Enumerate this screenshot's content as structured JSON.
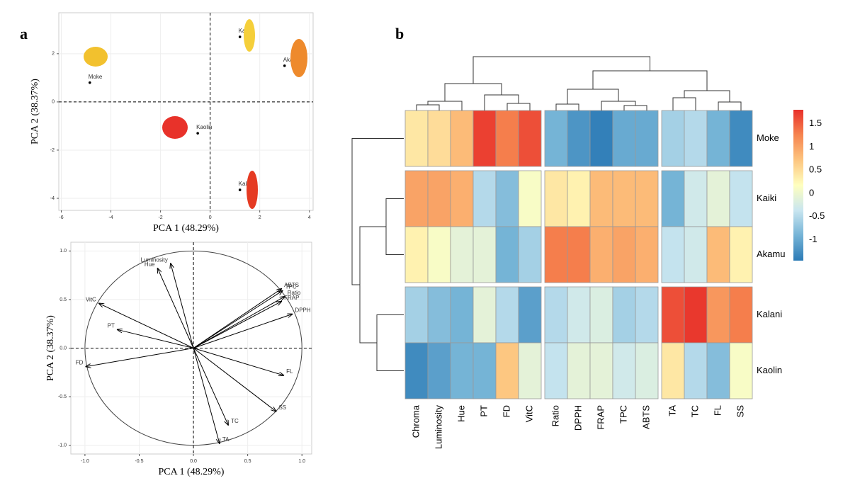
{
  "panel_labels": [
    "a",
    "b"
  ],
  "chart_data": [
    {
      "type": "scatter",
      "x_label": "PCA 1 (48.29%)",
      "y_label": "PCA 2 (38.37%)",
      "labels": [
        "Moke",
        "Kaiki",
        "Akamu",
        "Kaolin",
        "Kalani"
      ],
      "x": [
        -4.85,
        1.2,
        3.0,
        -0.5,
        1.2
      ],
      "y": [
        0.8,
        2.7,
        1.5,
        -1.3,
        -3.65
      ],
      "xlim": [
        -6.1,
        4.15
      ],
      "ylim": [
        -4.5,
        3.7
      ],
      "xticks": [
        -6,
        -4,
        -2,
        0,
        2,
        4
      ],
      "yticks": [
        -4,
        -2,
        0,
        2
      ],
      "grid": true,
      "color": "#000000"
    },
    {
      "type": "biplot",
      "x_label": "PCA 1 (48.29%)",
      "y_label": "PCA 2 (38.37%)",
      "labels": [
        "Luminosity",
        "Hue",
        "VitC",
        "PT",
        "FD",
        "ABTS",
        "TPC",
        "Ratio",
        "FRAP",
        "DPPH",
        "FL",
        "SS",
        "TC",
        "TA"
      ],
      "x": [
        -0.21,
        -0.33,
        -0.87,
        -0.7,
        -0.99,
        0.81,
        0.82,
        0.84,
        0.81,
        0.91,
        0.83,
        0.76,
        0.32,
        0.24
      ],
      "y": [
        0.87,
        0.82,
        0.46,
        0.19,
        -0.19,
        0.61,
        0.59,
        0.53,
        0.48,
        0.35,
        -0.28,
        -0.65,
        -0.79,
        -0.98
      ],
      "xlim": [
        -1.13,
        1.09
      ],
      "ylim": [
        -1.09,
        1.09
      ],
      "xticks": [
        {
          "value": -1,
          "label": "-1.0"
        },
        -0.5,
        {
          "value": 0,
          "label": "0.0"
        },
        0.5,
        {
          "value": 1,
          "label": "1.0"
        }
      ],
      "yticks": [
        {
          "value": -1,
          "label": "-1.0"
        },
        -0.5,
        {
          "value": 0,
          "label": "0.0"
        },
        0.5,
        {
          "value": 1,
          "label": "1.0"
        }
      ],
      "grid": true,
      "color": "#000000"
    },
    {
      "type": "heatmap",
      "rows": [
        "Moke",
        "Kaiki",
        "Akamu",
        "Kalani",
        "Kaolin"
      ],
      "columns": [
        "Chroma",
        "Luminosity",
        "Hue",
        "PT",
        "FD",
        "VitC",
        "Ratio",
        "DPPH",
        "FRAP",
        "TPC",
        "ABTS",
        "TA",
        "TC",
        "FL",
        "SS"
      ],
      "values": [
        [
          0.4,
          0.5,
          0.8,
          1.7,
          1.3,
          1.6,
          -0.9,
          -1.2,
          -1.4,
          -1.0,
          -1.0,
          -0.6,
          -0.5,
          -0.9,
          -1.3
        ],
        [
          1.0,
          1.0,
          0.9,
          -0.5,
          -0.8,
          0.1,
          0.4,
          0.3,
          0.8,
          0.8,
          0.8,
          -0.9,
          -0.3,
          -0.1,
          -0.4
        ],
        [
          0.3,
          0.1,
          -0.1,
          -0.1,
          -0.9,
          -0.6,
          1.3,
          1.3,
          0.9,
          1.0,
          0.9,
          -0.4,
          -0.3,
          0.8,
          0.3
        ],
        [
          -0.6,
          -0.8,
          -0.9,
          -0.1,
          -0.5,
          -1.1,
          -0.5,
          -0.3,
          -0.2,
          -0.6,
          -0.5,
          1.6,
          1.75,
          1.1,
          1.3
        ],
        [
          -1.3,
          -1.1,
          -0.9,
          -0.9,
          0.7,
          -0.1,
          -0.4,
          -0.1,
          -0.1,
          -0.3,
          -0.2,
          0.4,
          -0.5,
          -0.8,
          0.1
        ]
      ],
      "zlim": [
        -1.45,
        1.8
      ],
      "zticks": [
        -1,
        -0.5,
        0,
        0.5,
        1,
        1.5
      ],
      "colors": [
        "#2c7bb6",
        "#74b3d6",
        "#c9e6f0",
        "#ffffbf",
        "#fdc57f",
        "#f6844f",
        "#e8302a"
      ]
    }
  ]
}
